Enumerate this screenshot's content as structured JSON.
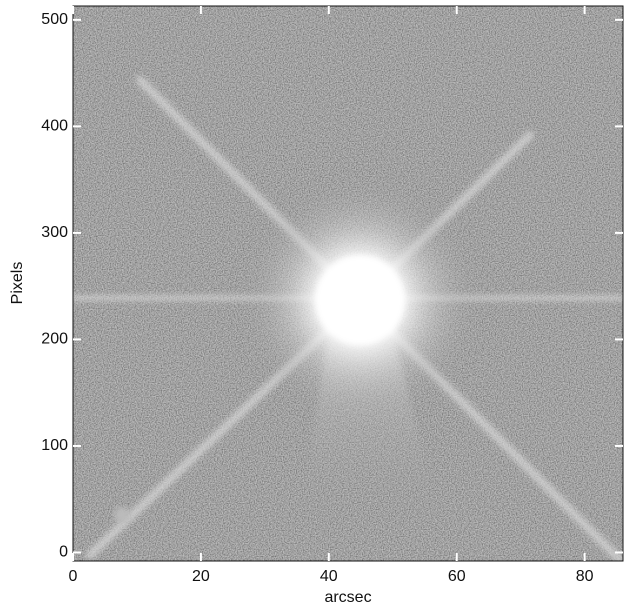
{
  "chart_data": {
    "type": "image",
    "xlabel": "arcsec",
    "ylabel": "Pixels",
    "xlim": [
      0,
      86
    ],
    "ylim": [
      -8,
      513
    ],
    "xticks": [
      0,
      20,
      40,
      60,
      80
    ],
    "yticks": [
      0,
      100,
      200,
      300,
      400,
      500
    ]
  }
}
